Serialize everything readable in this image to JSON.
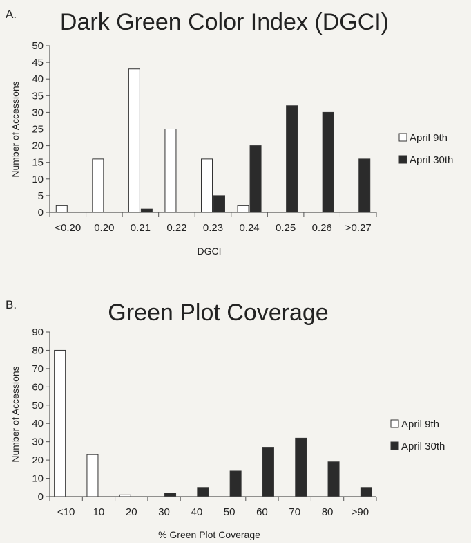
{
  "chart_data": [
    {
      "type": "bar",
      "panel": "A.",
      "title": "Dark Green Color Index (DGCI)",
      "xlabel": "DGCI",
      "ylabel": "Number of Accessions",
      "categories": [
        "<0.20",
        "0.20",
        "0.21",
        "0.22",
        "0.23",
        "0.24",
        "0.25",
        "0.26",
        ">0.27"
      ],
      "series": [
        {
          "name": "April 9th",
          "color": "#ffffff",
          "values": [
            2,
            16,
            43,
            25,
            16,
            2,
            0,
            0,
            0
          ]
        },
        {
          "name": "April 30th",
          "color": "#2b2b2b",
          "values": [
            0,
            0,
            1,
            0,
            5,
            20,
            32,
            30,
            16
          ]
        }
      ],
      "ylim": [
        0,
        50
      ],
      "yticks": [
        0,
        5,
        10,
        15,
        20,
        25,
        30,
        35,
        40,
        45,
        50
      ],
      "grid": false,
      "legend": "right"
    },
    {
      "type": "bar",
      "panel": "B.",
      "title": "Green Plot Coverage",
      "xlabel": "% Green Plot Coverage",
      "ylabel": "Number of Accessions",
      "categories": [
        "<10",
        "10",
        "20",
        "30",
        "40",
        "50",
        "60",
        "70",
        "80",
        ">90"
      ],
      "series": [
        {
          "name": "April 9th",
          "color": "#ffffff",
          "values": [
            80,
            23,
            1,
            0,
            0,
            0,
            0,
            0,
            0,
            0
          ]
        },
        {
          "name": "April 30th",
          "color": "#2b2b2b",
          "values": [
            0,
            0,
            0,
            2,
            5,
            14,
            27,
            32,
            19,
            5
          ]
        }
      ],
      "ylim": [
        0,
        90
      ],
      "yticks": [
        0,
        10,
        20,
        30,
        40,
        50,
        60,
        70,
        80,
        90
      ],
      "grid": false,
      "legend": "right"
    }
  ]
}
